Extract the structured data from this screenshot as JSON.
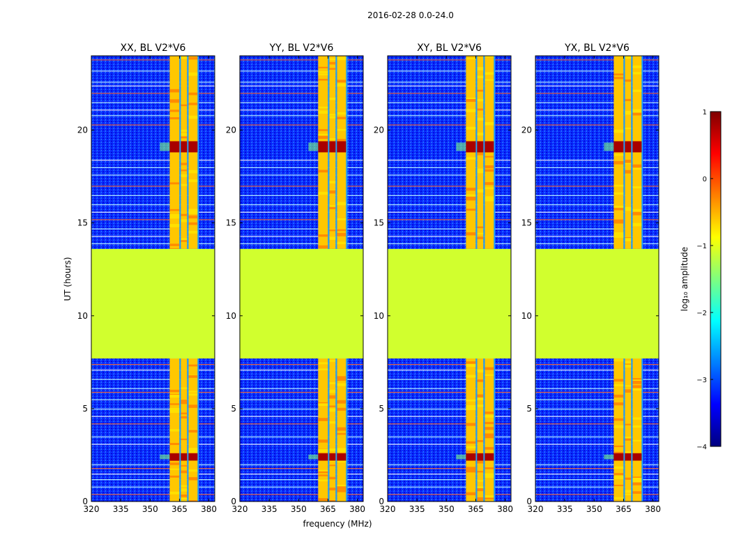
{
  "figure": {
    "suptitle": "2016-02-28 0.0-24.0",
    "ylabel": "UT (hours)",
    "xlabel": "frequency (MHz)"
  },
  "colorbar": {
    "label": "log₁₀ amplitude",
    "range": [
      -4,
      1
    ],
    "ticks": [
      1,
      0,
      -1,
      -2,
      -3,
      -4
    ],
    "tick_labels": [
      "1",
      "0",
      "−1",
      "−2",
      "−3",
      "−4"
    ],
    "colormap": "jet",
    "stops": [
      "#00007f",
      "#0000ff",
      "#007fff",
      "#00ffff",
      "#7fff7f",
      "#ffff00",
      "#ff7f00",
      "#ff0000",
      "#7f0000"
    ]
  },
  "chart_data": [
    {
      "type": "heatmap",
      "title": "XX, BL V2*V6",
      "xlabel": "frequency (MHz)",
      "ylabel": "UT (hours)",
      "xlim": [
        320,
        383
      ],
      "ylim": [
        0,
        24
      ],
      "xticks": [
        320,
        335,
        350,
        365,
        380
      ],
      "yticks": [
        0,
        5,
        10,
        15,
        20
      ],
      "background_level": -3.0,
      "no_data_gap_hours": [
        7.7,
        13.6
      ],
      "no_data_level": -1.1,
      "rfi_band_mhz": [
        360,
        374
      ],
      "rfi_band_level": -0.6,
      "strong_rfi_hours": [
        [
          18.8,
          19.4
        ],
        [
          2.2,
          2.6
        ]
      ],
      "strong_rfi_level": 0.8
    },
    {
      "type": "heatmap",
      "title": "YY, BL V2*V6",
      "xlabel": "frequency (MHz)",
      "ylabel": "UT (hours)",
      "xlim": [
        320,
        383
      ],
      "ylim": [
        0,
        24
      ],
      "xticks": [
        320,
        335,
        350,
        365,
        380
      ],
      "yticks": [
        0,
        5,
        10,
        15,
        20
      ],
      "background_level": -3.0,
      "no_data_gap_hours": [
        7.7,
        13.6
      ],
      "no_data_level": -1.1,
      "rfi_band_mhz": [
        360,
        374
      ],
      "rfi_band_level": -0.6,
      "strong_rfi_hours": [
        [
          18.8,
          19.4
        ],
        [
          2.2,
          2.6
        ]
      ],
      "strong_rfi_level": 0.8
    },
    {
      "type": "heatmap",
      "title": "XY, BL V2*V6",
      "xlabel": "frequency (MHz)",
      "ylabel": "UT (hours)",
      "xlim": [
        320,
        383
      ],
      "ylim": [
        0,
        24
      ],
      "xticks": [
        320,
        335,
        350,
        365,
        380
      ],
      "yticks": [
        0,
        5,
        10,
        15,
        20
      ],
      "background_level": -3.0,
      "no_data_gap_hours": [
        7.7,
        13.6
      ],
      "no_data_level": -1.1,
      "rfi_band_mhz": [
        360,
        374
      ],
      "rfi_band_level": -0.6,
      "strong_rfi_hours": [
        [
          18.8,
          19.4
        ],
        [
          2.2,
          2.6
        ]
      ],
      "strong_rfi_level": 0.8
    },
    {
      "type": "heatmap",
      "title": "YX, BL V2*V6",
      "xlabel": "frequency (MHz)",
      "ylabel": "UT (hours)",
      "xlim": [
        320,
        383
      ],
      "ylim": [
        0,
        24
      ],
      "xticks": [
        320,
        335,
        350,
        365,
        380
      ],
      "yticks": [
        0,
        5,
        10,
        15,
        20
      ],
      "background_level": -3.0,
      "no_data_gap_hours": [
        7.7,
        13.6
      ],
      "no_data_level": -1.1,
      "rfi_band_mhz": [
        360,
        374
      ],
      "rfi_band_level": -0.6,
      "strong_rfi_hours": [
        [
          18.8,
          19.4
        ],
        [
          2.2,
          2.6
        ]
      ],
      "strong_rfi_level": 0.8
    }
  ]
}
